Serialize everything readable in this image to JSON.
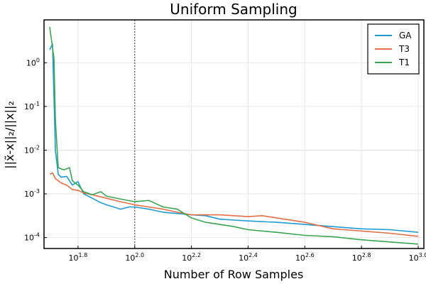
{
  "chart_data": {
    "type": "line",
    "title": "Uniform Sampling",
    "xlabel": "Number of Row Samples",
    "ylabel": "||x̃-x||₂/||x||₂",
    "xscale": "log10",
    "yscale": "log10",
    "xlim_log10": [
      1.68,
      3.02
    ],
    "ylim_log10": [
      -4.25,
      0.98
    ],
    "x_ticks": [
      {
        "log10": 1.8,
        "base": "10",
        "exp": "1.8"
      },
      {
        "log10": 2.0,
        "base": "10",
        "exp": "2.0"
      },
      {
        "log10": 2.2,
        "base": "10",
        "exp": "2.2"
      },
      {
        "log10": 2.4,
        "base": "10",
        "exp": "2.4"
      },
      {
        "log10": 2.6,
        "base": "10",
        "exp": "2.6"
      },
      {
        "log10": 2.8,
        "base": "10",
        "exp": "2.8"
      },
      {
        "log10": 3.0,
        "base": "10",
        "exp": "3.0"
      }
    ],
    "y_ticks": [
      {
        "log10": 0,
        "base": "10",
        "exp": "0"
      },
      {
        "log10": -1,
        "base": "10",
        "exp": "-1"
      },
      {
        "log10": -2,
        "base": "10",
        "exp": "-2"
      },
      {
        "log10": -3,
        "base": "10",
        "exp": "-3"
      },
      {
        "log10": -4,
        "base": "10",
        "exp": "-4"
      }
    ],
    "vline_log10": 2.0,
    "grid": true,
    "legend_position": "top-right",
    "series": [
      {
        "name": "GA",
        "color": "#1f9ad6",
        "points": [
          [
            1.7,
            0.3
          ],
          [
            1.71,
            0.43
          ],
          [
            1.72,
            -2.0
          ],
          [
            1.73,
            -2.55
          ],
          [
            1.74,
            -2.62
          ],
          [
            1.76,
            -2.6
          ],
          [
            1.78,
            -2.8
          ],
          [
            1.8,
            -2.72
          ],
          [
            1.82,
            -3.0
          ],
          [
            1.85,
            -3.1
          ],
          [
            1.88,
            -3.2
          ],
          [
            1.9,
            -3.25
          ],
          [
            1.95,
            -3.35
          ],
          [
            1.98,
            -3.3
          ],
          [
            2.0,
            -3.3
          ],
          [
            2.05,
            -3.35
          ],
          [
            2.1,
            -3.42
          ],
          [
            2.15,
            -3.45
          ],
          [
            2.2,
            -3.48
          ],
          [
            2.25,
            -3.5
          ],
          [
            2.3,
            -3.58
          ],
          [
            2.35,
            -3.6
          ],
          [
            2.4,
            -3.62
          ],
          [
            2.5,
            -3.65
          ],
          [
            2.6,
            -3.7
          ],
          [
            2.7,
            -3.75
          ],
          [
            2.8,
            -3.8
          ],
          [
            2.9,
            -3.82
          ],
          [
            3.0,
            -3.88
          ]
        ]
      },
      {
        "name": "T3",
        "color": "#e26f46",
        "points": [
          [
            1.7,
            -2.55
          ],
          [
            1.71,
            -2.52
          ],
          [
            1.72,
            -2.65
          ],
          [
            1.74,
            -2.75
          ],
          [
            1.76,
            -2.8
          ],
          [
            1.78,
            -2.9
          ],
          [
            1.8,
            -2.92
          ],
          [
            1.82,
            -2.98
          ],
          [
            1.85,
            -3.02
          ],
          [
            1.9,
            -3.1
          ],
          [
            1.95,
            -3.18
          ],
          [
            2.0,
            -3.25
          ],
          [
            2.05,
            -3.3
          ],
          [
            2.1,
            -3.35
          ],
          [
            2.15,
            -3.42
          ],
          [
            2.2,
            -3.48
          ],
          [
            2.3,
            -3.48
          ],
          [
            2.4,
            -3.52
          ],
          [
            2.45,
            -3.5
          ],
          [
            2.5,
            -3.55
          ],
          [
            2.6,
            -3.65
          ],
          [
            2.7,
            -3.8
          ],
          [
            2.8,
            -3.85
          ],
          [
            2.9,
            -3.9
          ],
          [
            3.0,
            -3.97
          ]
        ]
      },
      {
        "name": "T1",
        "color": "#3ba551",
        "points": [
          [
            1.7,
            0.82
          ],
          [
            1.715,
            0.1
          ],
          [
            1.72,
            -1.3
          ],
          [
            1.73,
            -2.4
          ],
          [
            1.75,
            -2.45
          ],
          [
            1.77,
            -2.4
          ],
          [
            1.78,
            -2.7
          ],
          [
            1.8,
            -2.8
          ],
          [
            1.82,
            -2.95
          ],
          [
            1.85,
            -3.02
          ],
          [
            1.88,
            -2.95
          ],
          [
            1.9,
            -3.05
          ],
          [
            1.95,
            -3.12
          ],
          [
            2.0,
            -3.18
          ],
          [
            2.05,
            -3.15
          ],
          [
            2.1,
            -3.3
          ],
          [
            2.15,
            -3.35
          ],
          [
            2.2,
            -3.55
          ],
          [
            2.25,
            -3.65
          ],
          [
            2.3,
            -3.7
          ],
          [
            2.35,
            -3.75
          ],
          [
            2.4,
            -3.82
          ],
          [
            2.5,
            -3.88
          ],
          [
            2.6,
            -3.95
          ],
          [
            2.7,
            -3.98
          ],
          [
            2.8,
            -4.05
          ],
          [
            2.9,
            -4.1
          ],
          [
            3.0,
            -4.15
          ]
        ]
      }
    ]
  }
}
